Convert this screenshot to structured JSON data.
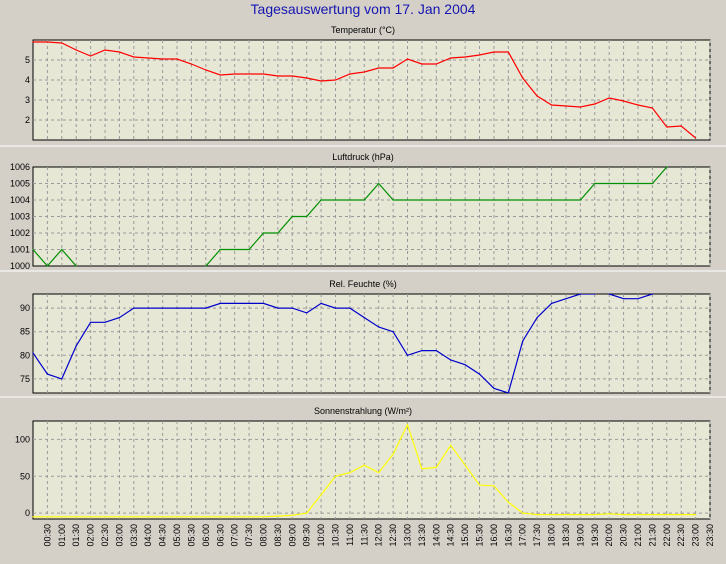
{
  "title": "Tagesauswertung vom 17. Jan 2004",
  "colors": {
    "background": "#d4d0c8",
    "plot_area": "#e7e7d6",
    "grid": "#9a9a9a",
    "title_text": "#1515b0"
  },
  "chart_data": [
    {
      "type": "line",
      "title": "Temperatur (°C)",
      "color": "#ff0000",
      "ylim": [
        1,
        6
      ],
      "yticks": [
        2,
        3,
        4,
        5
      ],
      "grid": true,
      "x": [
        0,
        0.5,
        1,
        1.5,
        2,
        2.5,
        3,
        3.5,
        4,
        4.5,
        5,
        5.5,
        6,
        6.5,
        7,
        7.5,
        8,
        8.5,
        9,
        9.5,
        10,
        10.5,
        11,
        11.5,
        12,
        12.5,
        13,
        13.5,
        14,
        14.5,
        15,
        15.5,
        16,
        16.5,
        17,
        17.5,
        18,
        18.5,
        19,
        19.5,
        20,
        20.5,
        21,
        21.5,
        22,
        22.5,
        23
      ],
      "values": [
        5.9,
        5.9,
        5.85,
        5.5,
        5.2,
        5.5,
        5.4,
        5.15,
        5.1,
        5.05,
        5.05,
        4.8,
        4.5,
        4.25,
        4.3,
        4.3,
        4.3,
        4.2,
        4.2,
        4.1,
        3.95,
        4.0,
        4.3,
        4.4,
        4.6,
        4.6,
        5.05,
        4.8,
        4.8,
        5.1,
        5.15,
        5.25,
        5.4,
        5.4,
        4.1,
        3.2,
        2.75,
        2.7,
        2.65,
        2.8,
        3.1,
        2.95,
        2.75,
        2.6,
        1.65,
        1.7,
        1.1
      ]
    },
    {
      "type": "line",
      "title": "Luftdruck (hPa)",
      "color": "#009000",
      "ylim": [
        1000,
        1006
      ],
      "yticks": [
        1000,
        1001,
        1002,
        1003,
        1004,
        1005,
        1006
      ],
      "grid": true,
      "x": [
        0,
        0.5,
        1,
        1.5,
        1.51,
        5.99,
        6,
        6.5,
        7,
        7.5,
        8,
        8.5,
        9,
        9.5,
        10,
        10.5,
        11,
        11.5,
        12,
        12.5,
        13,
        13.5,
        14,
        14.5,
        15,
        15.5,
        16,
        16.5,
        17,
        17.5,
        18,
        18.5,
        19,
        19.5,
        20,
        20.5,
        21,
        21.5,
        22
      ],
      "values": [
        1001,
        1000,
        1001,
        1000,
        null,
        null,
        1000,
        1001,
        1001,
        1001,
        1002,
        1002,
        1003,
        1003,
        1004,
        1004,
        1004,
        1004,
        1005,
        1004,
        1004,
        1004,
        1004,
        1004,
        1004,
        1004,
        1004,
        1004,
        1004,
        1004,
        1004,
        1004,
        1004,
        1005,
        1005,
        1005,
        1005,
        1005,
        1006
      ]
    },
    {
      "type": "line",
      "title": "Rel. Feuchte (%)",
      "color": "#0000cc",
      "ylim": [
        72,
        93
      ],
      "yticks": [
        75,
        80,
        85,
        90
      ],
      "grid": true,
      "x": [
        0,
        0.5,
        1,
        1.5,
        2,
        2.5,
        3,
        3.5,
        4,
        4.5,
        5,
        5.5,
        6,
        6.5,
        7,
        7.5,
        8,
        8.5,
        9,
        9.5,
        10,
        10.5,
        11,
        11.5,
        12,
        12.5,
        13,
        13.5,
        14,
        14.5,
        15,
        15.5,
        16,
        16.5,
        17,
        17.5,
        18,
        18.5,
        19,
        19.49,
        19.51,
        20,
        20.5,
        21,
        21.5
      ],
      "values": [
        80.5,
        76,
        75,
        82,
        87,
        87,
        88,
        90,
        90,
        90,
        90,
        90,
        90,
        91,
        91,
        91,
        91,
        90,
        90,
        89,
        91,
        90,
        90,
        88,
        86,
        85,
        80,
        81,
        81,
        79,
        78,
        76,
        73,
        72,
        83,
        88,
        91,
        92,
        93,
        93,
        null,
        93,
        92,
        92,
        93
      ]
    },
    {
      "type": "line",
      "title": "Sonnenstrahlung (W/m²)",
      "color": "#ffff00",
      "ylim": [
        -8,
        125
      ],
      "yticks": [
        0,
        50,
        100
      ],
      "grid": true,
      "x": [
        0,
        0.5,
        1,
        1.5,
        2,
        2.5,
        3,
        3.5,
        4,
        4.5,
        5,
        5.5,
        6,
        6.5,
        7,
        7.5,
        8,
        8.5,
        9,
        9.5,
        10,
        10.5,
        11,
        11.5,
        12,
        12.5,
        13,
        13.5,
        14,
        14.5,
        15,
        15.5,
        16,
        16.5,
        17,
        17.5,
        18,
        18.5,
        19,
        19.5,
        20,
        20.5,
        21,
        21.5,
        22,
        22.5,
        23
      ],
      "values": [
        -5,
        -5,
        -5,
        -5,
        -5,
        -5,
        -5,
        -5,
        -5,
        -5,
        -5,
        -5,
        -5,
        -5,
        -5,
        -5,
        -5,
        -4,
        -3,
        0,
        25,
        50,
        55,
        65,
        55,
        80,
        120,
        60,
        62,
        92,
        65,
        38,
        37,
        15,
        0,
        -2,
        -2,
        -2,
        -2,
        -2,
        -1,
        -2,
        -2,
        -2,
        -2,
        -2,
        -2
      ]
    }
  ],
  "x_axis": {
    "ticks": [
      "00:30",
      "01:00",
      "01:30",
      "02:00",
      "02:30",
      "03:00",
      "03:30",
      "04:00",
      "04:30",
      "05:00",
      "05:30",
      "06:00",
      "06:30",
      "07:00",
      "07:30",
      "08:00",
      "08:30",
      "09:00",
      "09:30",
      "10:00",
      "10:30",
      "11:00",
      "11:30",
      "12:00",
      "12:30",
      "13:00",
      "13:30",
      "14:00",
      "14:30",
      "15:00",
      "15:30",
      "16:00",
      "16:30",
      "17:00",
      "17:30",
      "18:00",
      "18:30",
      "19:00",
      "19:30",
      "20:00",
      "20:30",
      "21:00",
      "21:30",
      "22:00",
      "22:30",
      "23:00",
      "23:30"
    ]
  }
}
